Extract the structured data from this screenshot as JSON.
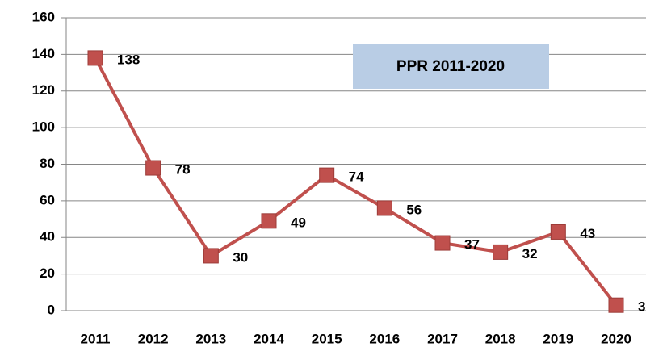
{
  "chart_data": {
    "type": "line",
    "title": "PPR 2011-2020",
    "categories": [
      "2011",
      "2012",
      "2013",
      "2014",
      "2015",
      "2016",
      "2017",
      "2018",
      "2019",
      "2020"
    ],
    "series": [
      {
        "name": "PPR",
        "color": "#c0504d",
        "values": [
          138,
          78,
          30,
          49,
          74,
          56,
          37,
          32,
          43,
          3
        ]
      }
    ],
    "ylim": [
      0,
      160
    ],
    "yticks": [
      0,
      20,
      40,
      60,
      80,
      100,
      120,
      140,
      160
    ],
    "grid": true
  }
}
